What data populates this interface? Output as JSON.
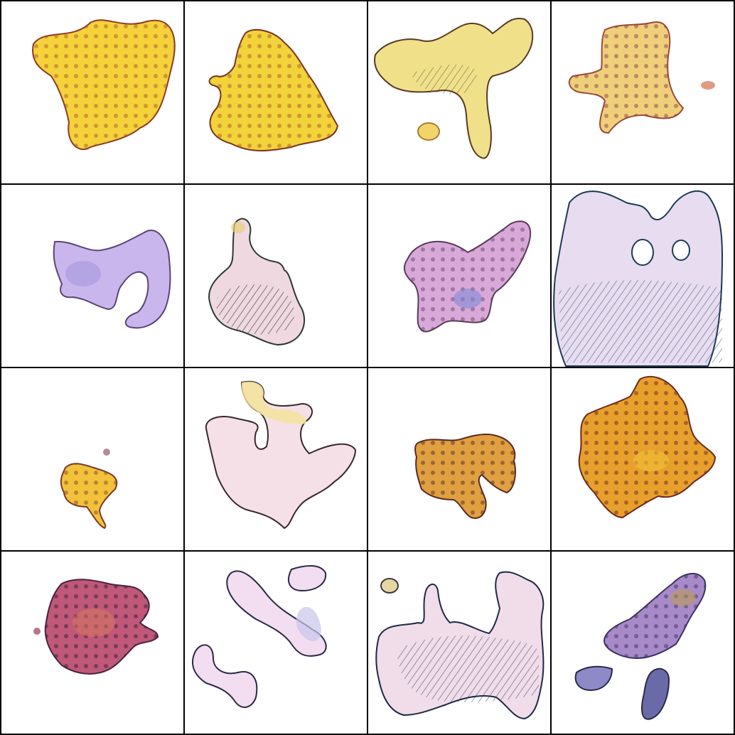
{
  "grid": {
    "rows": 4,
    "cols": 4,
    "border_color": "#000000",
    "tile_background": "#ffffff"
  },
  "tiles": [
    {
      "palette": [
        "#f5d23a",
        "#c9872f",
        "#8a3b24"
      ],
      "texture": "dotted"
    },
    {
      "palette": [
        "#f2d33a",
        "#c98a2c",
        "#7a3320"
      ],
      "texture": "dotted"
    },
    {
      "palette": [
        "#f1e08a",
        "#b9894a",
        "#3c4a33"
      ],
      "texture": "hatched"
    },
    {
      "palette": [
        "#f0cf7a",
        "#c37a52",
        "#7b3247"
      ],
      "texture": "dotted"
    },
    {
      "palette": [
        "#c9b6ec",
        "#8e7ac8",
        "#5a4577"
      ],
      "texture": "smooth"
    },
    {
      "palette": [
        "#f0d8e0",
        "#6d7b6a",
        "#2a3a30"
      ],
      "texture": "hatched"
    },
    {
      "palette": [
        "#d8a9d8",
        "#8a5aa8",
        "#5a3a5a"
      ],
      "texture": "dotted"
    },
    {
      "palette": [
        "#e7dcf0",
        "#9fc4dc",
        "#1d3a55"
      ],
      "texture": "hatched"
    },
    {
      "palette": [
        "#f2c23a",
        "#b9782e",
        "#7a3a2a"
      ],
      "texture": "dotted"
    },
    {
      "palette": [
        "#f5e0e8",
        "#f3e39a",
        "#3a2a2a"
      ],
      "texture": "smooth"
    },
    {
      "palette": [
        "#e0a040",
        "#9a5a2a",
        "#5a2a22"
      ],
      "texture": "dotted"
    },
    {
      "palette": [
        "#e8a02c",
        "#b4541f",
        "#6a2a20"
      ],
      "texture": "dotted"
    },
    {
      "palette": [
        "#c0587a",
        "#8a3a5a",
        "#4a2440"
      ],
      "texture": "dotted"
    },
    {
      "palette": [
        "#f2def0",
        "#c9c4ec",
        "#2a2a44"
      ],
      "texture": "smooth"
    },
    {
      "palette": [
        "#f1dcea",
        "#a8c8e0",
        "#1d2a44"
      ],
      "texture": "hatched"
    },
    {
      "palette": [
        "#a98ac8",
        "#6a5a9a",
        "#3a3460"
      ],
      "texture": "dotted"
    }
  ]
}
